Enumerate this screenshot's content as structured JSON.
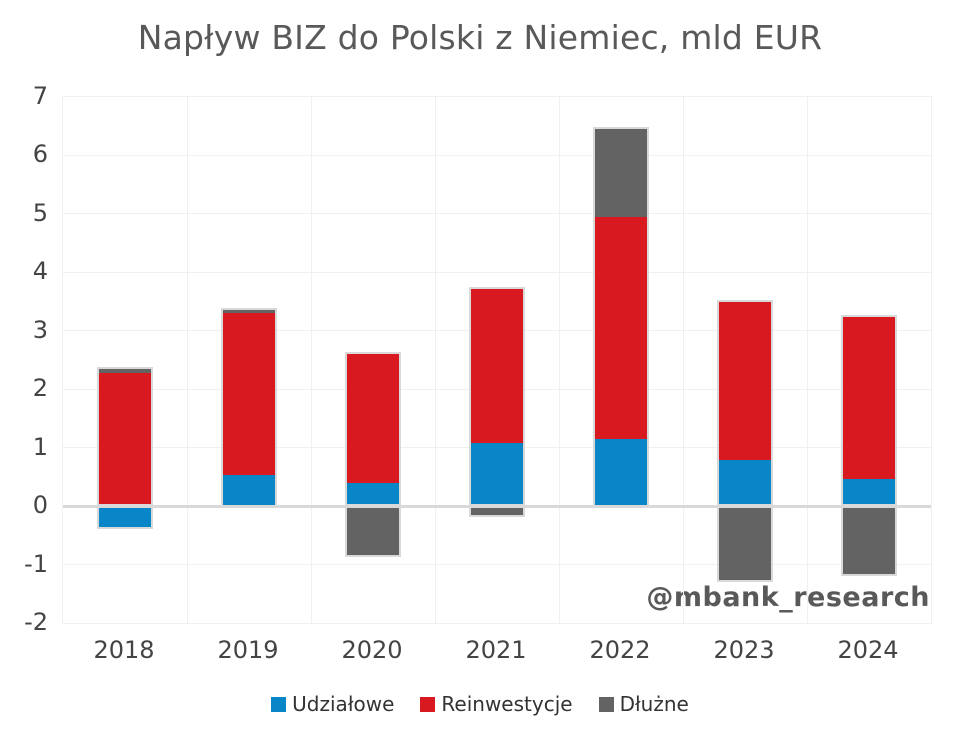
{
  "watermark": "@mbank_research",
  "chart_data": {
    "type": "bar",
    "stacked": true,
    "title": "Napływ BIZ do Polski z Niemiec, mld EUR",
    "xlabel": "",
    "ylabel": "",
    "categories": [
      "2018",
      "2019",
      "2020",
      "2021",
      "2022",
      "2023",
      "2024"
    ],
    "series": [
      {
        "name": "Udziałowe",
        "color": "#0886c8",
        "values": [
          -0.35,
          0.53,
          0.4,
          1.08,
          1.15,
          0.79,
          0.47
        ]
      },
      {
        "name": "Reinwestycje",
        "color": "#d91920",
        "values": [
          2.28,
          2.77,
          2.21,
          2.64,
          3.8,
          2.7,
          2.77
        ]
      },
      {
        "name": "Dłużne",
        "color": "#636363",
        "values": [
          0.07,
          0.05,
          -0.83,
          -0.15,
          1.5,
          -1.26,
          -1.17
        ]
      }
    ],
    "ylim": [
      -2,
      7
    ],
    "y_ticks": [
      7,
      6,
      5,
      4,
      3,
      2,
      1,
      0,
      -1,
      -2
    ],
    "grid": true,
    "legend_position": "bottom"
  },
  "colors": {
    "grid": "#f0f0f0",
    "zero_line": "#d9d9d9",
    "bar_outline": "#d9d9d9",
    "title_text": "#595959",
    "axis_text": "#444444",
    "watermark_text": "#595959"
  }
}
